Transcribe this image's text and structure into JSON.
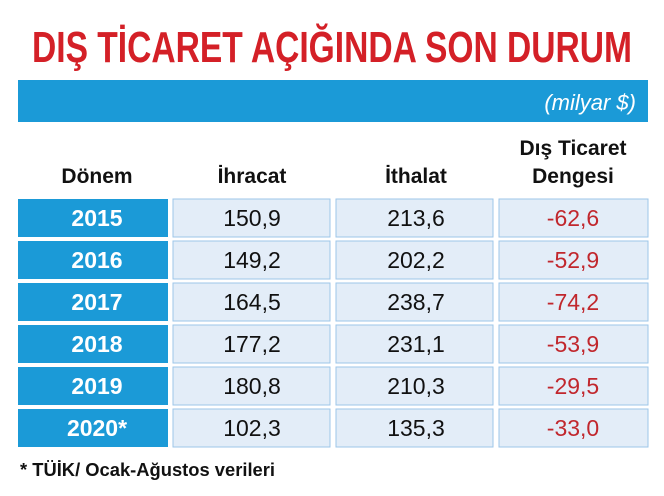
{
  "header": {
    "title": "DIŞ TİCARET AÇIĞINDA SON DURUM",
    "unit": "(milyar $)"
  },
  "table": {
    "columns": [
      "Dönem",
      "İhracat",
      "İthalat",
      [
        "Dış Ticaret",
        "Dengesi"
      ]
    ],
    "rows": [
      [
        "2015",
        "150,9",
        "213,6",
        "-62,6"
      ],
      [
        "2016",
        "149,2",
        "202,2",
        "-52,9"
      ],
      [
        "2017",
        "164,5",
        "238,7",
        "-74,2"
      ],
      [
        "2018",
        "177,2",
        "231,1",
        "-53,9"
      ],
      [
        "2019",
        "180,8",
        "210,3",
        "-29,5"
      ],
      [
        "2020*",
        "102,3",
        "135,3",
        "-33,0"
      ]
    ]
  },
  "footnote": "* TÜİK/ Ocak-Ağustos verileri"
}
